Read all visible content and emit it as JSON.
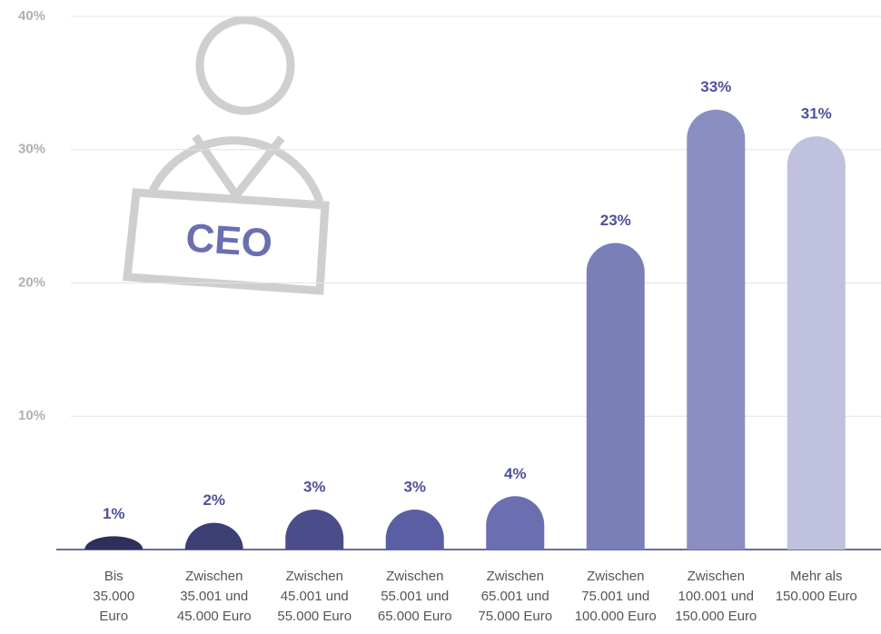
{
  "chart_data": {
    "type": "bar",
    "categories": [
      "Bis 35.000 Euro",
      "Zwischen 35.001 und 45.000 Euro",
      "Zwischen 45.001 und 55.000 Euro",
      "Zwischen 55.001 und 65.000 Euro",
      "Zwischen 65.001 und 75.000 Euro",
      "Zwischen 75.001 und 100.000 Euro",
      "Zwischen 100.001 und 150.000 Euro",
      "Mehr als 150.000 Euro"
    ],
    "values": [
      1,
      2,
      3,
      3,
      4,
      23,
      33,
      31
    ],
    "value_labels": [
      "1%",
      "2%",
      "3%",
      "3%",
      "4%",
      "23%",
      "33%",
      "31%"
    ],
    "colors": [
      "#2e2f5a",
      "#3c3f73",
      "#4a4d8a",
      "#5a5ea3",
      "#6b6fb0",
      "#7b7fb8",
      "#8a8ec2",
      "#bfc1de"
    ],
    "ylim": [
      0,
      40
    ],
    "yticks": [
      {
        "value": 10,
        "label": "10%"
      },
      {
        "value": 20,
        "label": "20%"
      },
      {
        "value": 30,
        "label": "30%"
      },
      {
        "value": 40,
        "label": "40%"
      }
    ],
    "grid": true,
    "icon_text": "CEO"
  }
}
